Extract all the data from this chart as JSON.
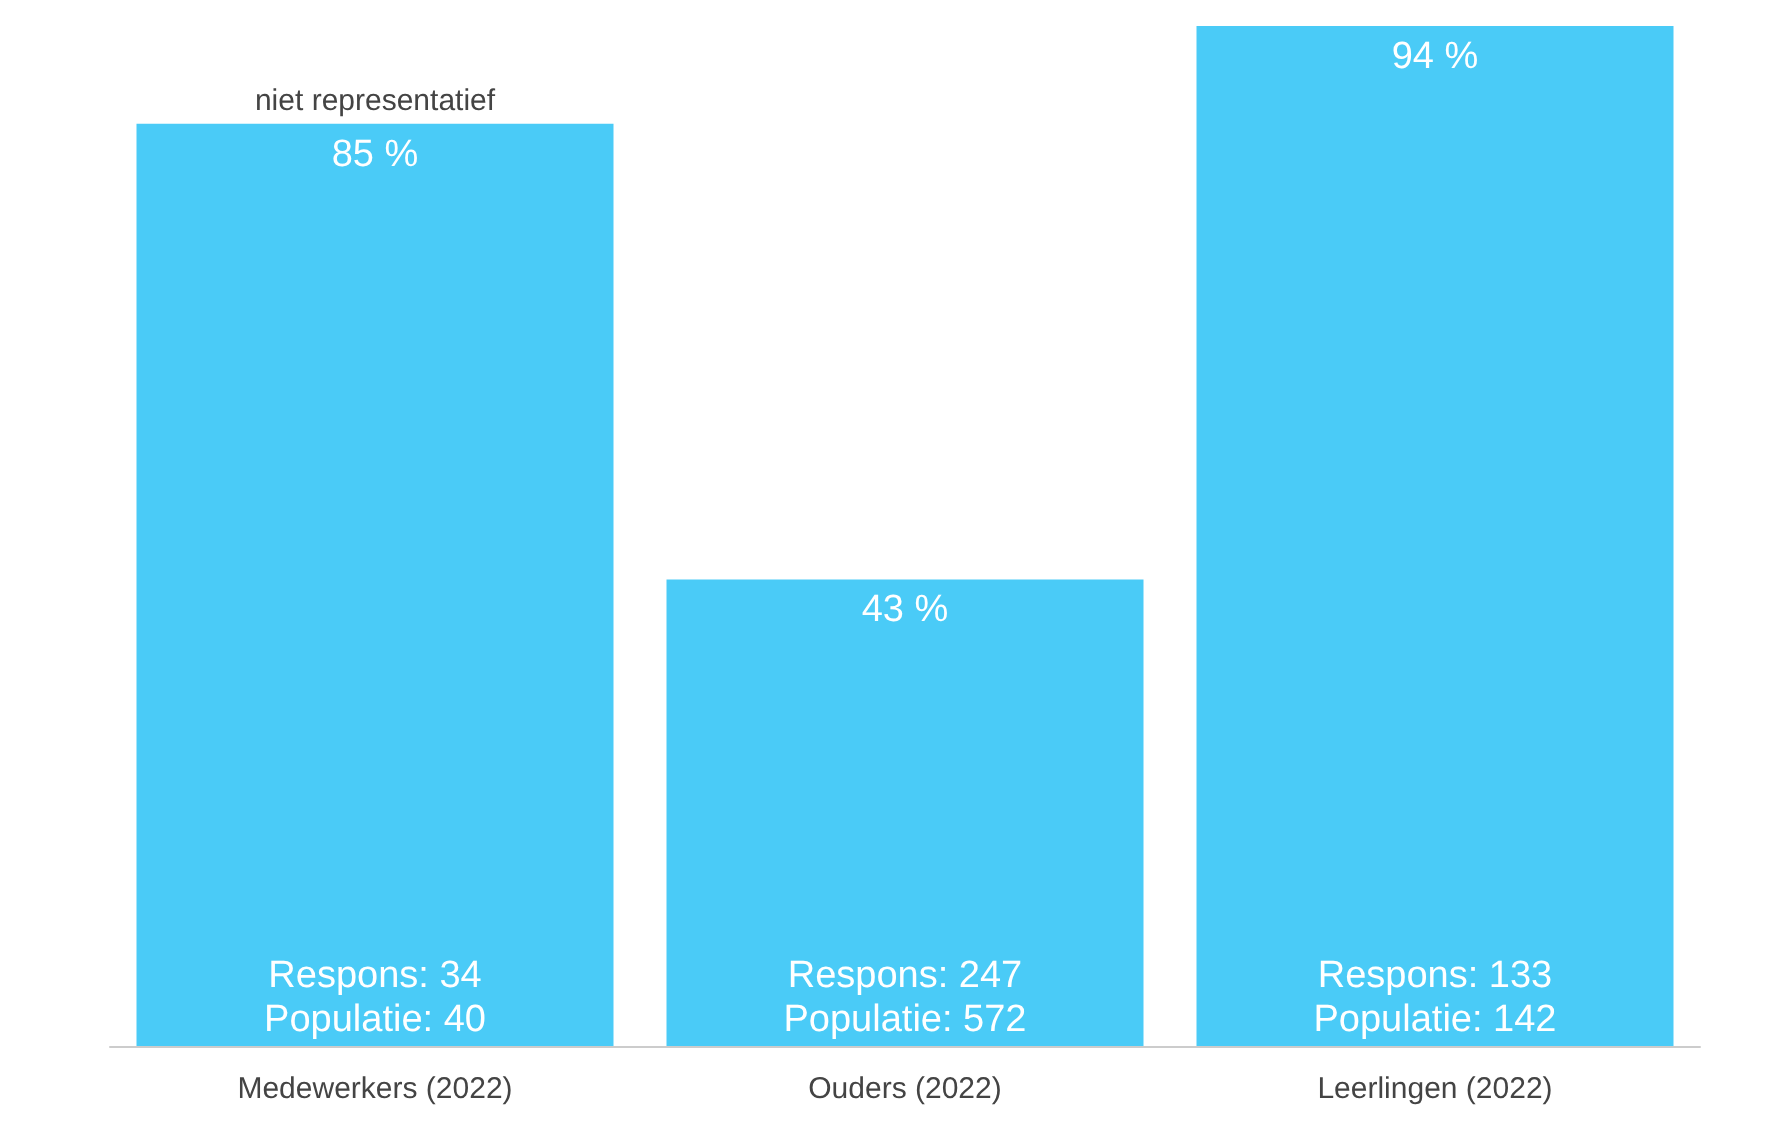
{
  "chart_data": {
    "type": "bar",
    "categories": [
      "Medewerkers (2022)",
      "Ouders (2022)",
      "Leerlingen (2022)"
    ],
    "values": [
      85,
      43,
      94
    ],
    "value_labels": [
      "85 %",
      "43 %",
      "94 %"
    ],
    "color": "#4acbf7",
    "ylim": [
      0,
      94
    ],
    "grid": false,
    "annotations": [
      {
        "text": "niet representatief",
        "x": "Medewerkers (2022)",
        "y": 85
      },
      "Respons: 34\nPopulatie: 40",
      "Respons: 247\nPopulatie: 572",
      "Respons: 133\nPopulatie: 142"
    ]
  }
}
